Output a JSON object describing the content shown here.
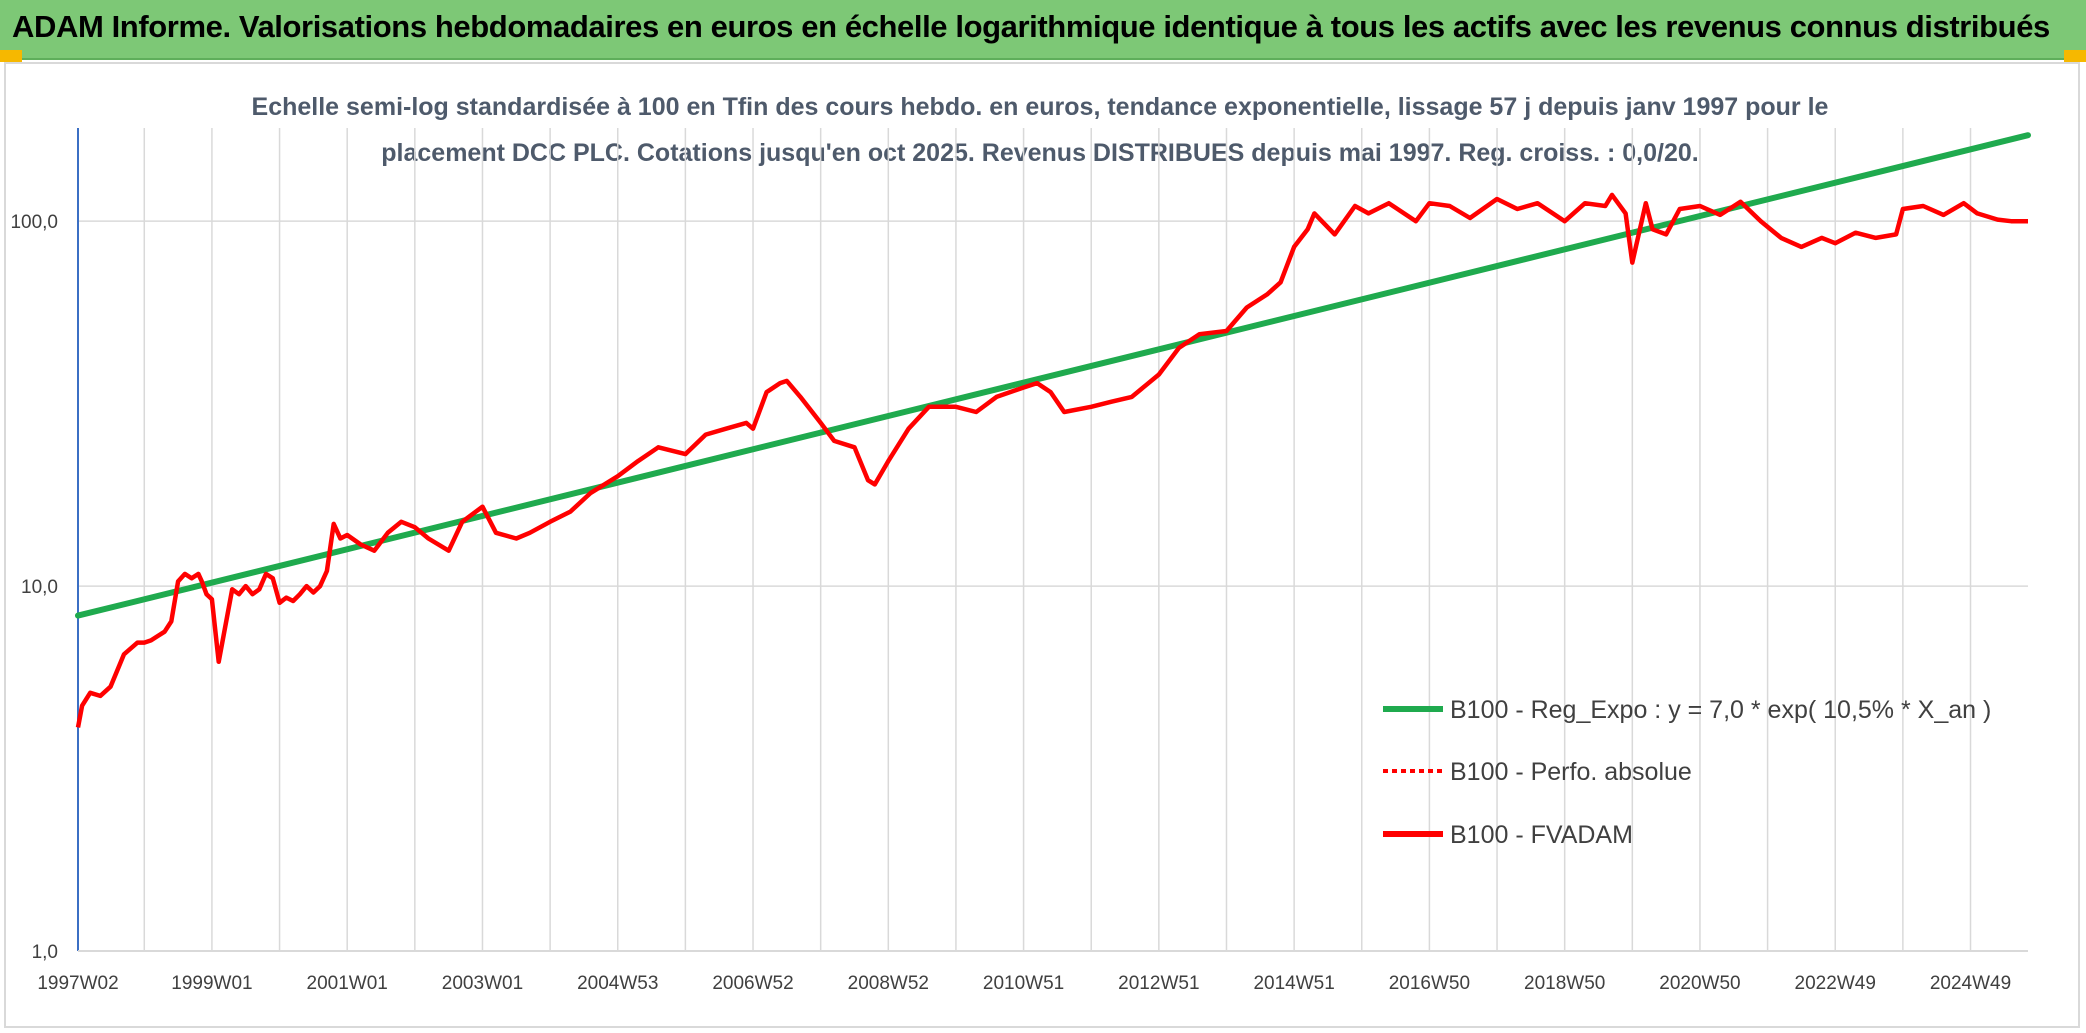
{
  "banner": {
    "title": "ADAM Informe. Valorisations hebdomadaires en euros en échelle logarithmique identique à tous les actifs avec les revenus connus distribués"
  },
  "colors": {
    "banner_bg": "#7dc876",
    "corner_accent": "#f6b800",
    "trend_line": "#1faa4e",
    "fvadam_line": "#ff0000",
    "axis": "#3b6fc4",
    "grid": "#d9d9d9",
    "title_text": "#4e5a6b",
    "tick_text": "#404040"
  },
  "chart_data": {
    "type": "line",
    "title": "Echelle semi-log standardisée à 100 en Tfin des cours hebdo. en euros, tendance exponentielle, lissage 57 j depuis janv 1997 pour le placement DCC PLC. Cotations jusqu'en oct 2025. Revenus DISTRIBUES depuis mai 1997. Reg. croiss. : 0,0/20.",
    "title_lines": [
      "Echelle semi-log standardisée à 100 en Tfin des cours hebdo. en euros, tendance exponentielle, lissage 57 j depuis janv 1997 pour le",
      "placement DCC PLC. Cotations jusqu'en oct 2025. Revenus DISTRIBUES depuis mai 1997. Reg. croiss. : 0,0/20."
    ],
    "y_scale": "log",
    "ylim": [
      1,
      180
    ],
    "xlim": [
      1997.02,
      2025.85
    ],
    "grid": true,
    "legend_position": "bottom-right",
    "y_ticks": [
      {
        "value": 1,
        "label": "1,0"
      },
      {
        "value": 10,
        "label": "10,0"
      },
      {
        "value": 100,
        "label": "100,0"
      }
    ],
    "x_ticks": [
      {
        "x": 1997.02,
        "label": "1997W02"
      },
      {
        "x": 1999.0,
        "label": "1999W01"
      },
      {
        "x": 2001.0,
        "label": "2001W01"
      },
      {
        "x": 2003.0,
        "label": "2003W01"
      },
      {
        "x": 2005.0,
        "label": "2004W53"
      },
      {
        "x": 2007.0,
        "label": "2006W52"
      },
      {
        "x": 2009.0,
        "label": "2008W52"
      },
      {
        "x": 2011.0,
        "label": "2010W51"
      },
      {
        "x": 2013.0,
        "label": "2012W51"
      },
      {
        "x": 2015.0,
        "label": "2014W51"
      },
      {
        "x": 2017.0,
        "label": "2016W50"
      },
      {
        "x": 2019.0,
        "label": "2018W50"
      },
      {
        "x": 2021.0,
        "label": "2020W50"
      },
      {
        "x": 2023.0,
        "label": "2022W49"
      },
      {
        "x": 2025.0,
        "label": "2024W49"
      }
    ],
    "minor_gridlines_x": [
      1998,
      2000,
      2002,
      2004,
      2006,
      2008,
      2010,
      2012,
      2014,
      2016,
      2018,
      2020,
      2022,
      2024
    ],
    "series": [
      {
        "name": "B100 - Reg_Expo : y = 7,0 * exp( 10,5% *  X_an )",
        "style": "solid",
        "color": "#1faa4e",
        "x": [
          1997.02,
          2025.85
        ],
        "y": [
          8.3,
          172
        ]
      },
      {
        "name": "B100 - Perfo. absolue",
        "style": "dotted",
        "color": "#ff0000",
        "x": [],
        "y": []
      },
      {
        "name": "B100 - FVADAM",
        "style": "solid",
        "color": "#ff0000",
        "x": [
          1997.02,
          1997.08,
          1997.2,
          1997.35,
          1997.5,
          1997.7,
          1997.9,
          1998.0,
          1998.1,
          1998.2,
          1998.3,
          1998.4,
          1998.5,
          1998.6,
          1998.7,
          1998.8,
          1998.85,
          1998.92,
          1999.0,
          1999.1,
          1999.3,
          1999.4,
          1999.5,
          1999.6,
          1999.7,
          1999.8,
          1999.9,
          2000.0,
          2000.1,
          2000.2,
          2000.3,
          2000.4,
          2000.5,
          2000.6,
          2000.7,
          2000.8,
          2000.9,
          2001.0,
          2001.2,
          2001.4,
          2001.6,
          2001.8,
          2002.0,
          2002.2,
          2002.5,
          2002.7,
          2003.0,
          2003.2,
          2003.5,
          2003.7,
          2004.0,
          2004.3,
          2004.6,
          2005.0,
          2005.3,
          2005.6,
          2006.0,
          2006.3,
          2006.6,
          2006.9,
          2007.0,
          2007.2,
          2007.4,
          2007.5,
          2007.7,
          2008.0,
          2008.2,
          2008.5,
          2008.7,
          2008.8,
          2009.0,
          2009.3,
          2009.6,
          2010.0,
          2010.3,
          2010.6,
          2011.0,
          2011.2,
          2011.4,
          2011.6,
          2012.0,
          2012.3,
          2012.6,
          2013.0,
          2013.3,
          2013.6,
          2014.0,
          2014.3,
          2014.6,
          2014.8,
          2015.0,
          2015.2,
          2015.3,
          2015.6,
          2015.9,
          2016.1,
          2016.4,
          2016.8,
          2017.0,
          2017.3,
          2017.6,
          2018.0,
          2018.3,
          2018.6,
          2019.0,
          2019.3,
          2019.6,
          2019.7,
          2019.9,
          2020.0,
          2020.2,
          2020.3,
          2020.5,
          2020.7,
          2021.0,
          2021.3,
          2021.6,
          2021.9,
          2022.2,
          2022.5,
          2022.8,
          2023.0,
          2023.3,
          2023.6,
          2023.9,
          2024.0,
          2024.3,
          2024.6,
          2024.9,
          2025.1,
          2025.4,
          2025.6,
          2025.85
        ],
        "y": [
          4.1,
          4.7,
          5.1,
          5.0,
          5.3,
          6.5,
          7.0,
          7.0,
          7.1,
          7.3,
          7.5,
          8.0,
          10.3,
          10.8,
          10.5,
          10.8,
          10.3,
          9.5,
          9.2,
          6.2,
          9.8,
          9.5,
          10.0,
          9.5,
          9.8,
          10.8,
          10.5,
          9.0,
          9.3,
          9.1,
          9.5,
          10.0,
          9.6,
          10.0,
          11.0,
          14.8,
          13.5,
          13.8,
          13.0,
          12.5,
          14.0,
          15.0,
          14.5,
          13.5,
          12.5,
          15.0,
          16.5,
          14.0,
          13.5,
          14.0,
          15.0,
          16.0,
          18.0,
          20.0,
          22.0,
          24.0,
          23.0,
          26.0,
          27.0,
          28.0,
          27.0,
          34.0,
          36.0,
          36.5,
          33.0,
          28.0,
          25.0,
          24.0,
          19.5,
          19.0,
          22.0,
          27.0,
          31.0,
          31.0,
          30.0,
          33.0,
          35.0,
          36.0,
          34.0,
          30.0,
          31.0,
          32.0,
          33.0,
          38.0,
          45.0,
          49.0,
          50.0,
          58.0,
          63.0,
          68.0,
          85.0,
          95.0,
          105.0,
          92.0,
          110.0,
          105.0,
          112.0,
          100.0,
          112.0,
          110.0,
          102.0,
          115.0,
          108.0,
          112.0,
          100.0,
          112.0,
          110.0,
          118.0,
          105.0,
          77.0,
          112.0,
          95.0,
          92.0,
          108.0,
          110.0,
          104.0,
          113.0,
          100.0,
          90.0,
          85.0,
          90.0,
          87.0,
          93.0,
          90.0,
          92.0,
          108.0,
          110.0,
          104.0,
          112.0,
          105.0,
          101.0,
          100.0,
          100.0
        ]
      }
    ]
  }
}
